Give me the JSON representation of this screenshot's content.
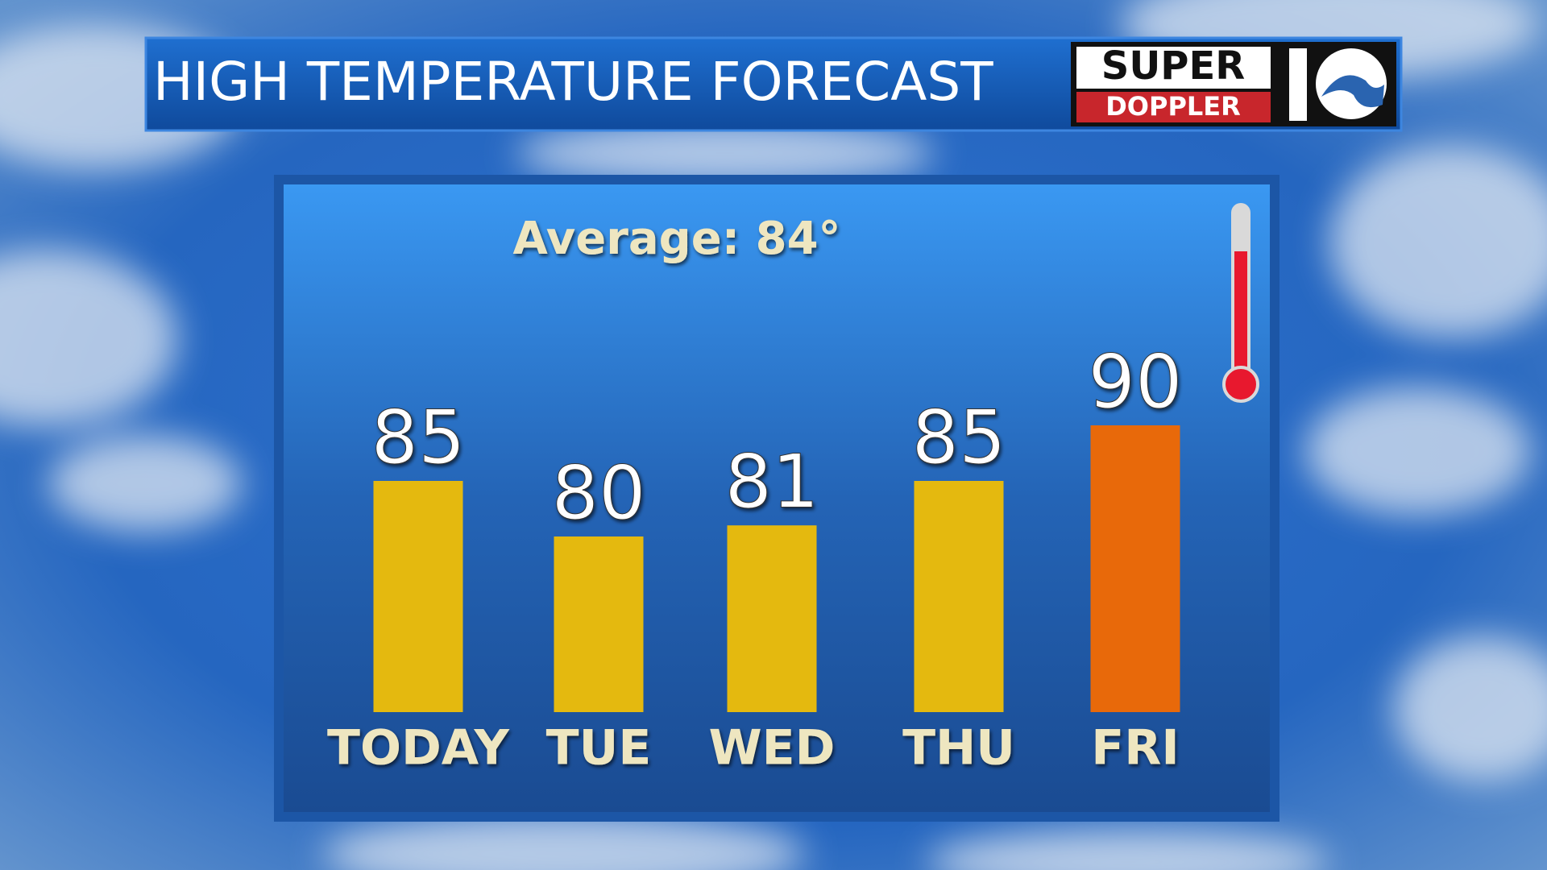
{
  "chart_data": {
    "type": "bar",
    "title": "HIGH TEMPERATURE FORECAST",
    "logo": {
      "top": "SUPER",
      "bottom": "DOPPLER"
    },
    "annotation": "Average: 84°",
    "categories": [
      "TODAY",
      "TUE",
      "WED",
      "THU",
      "FRI"
    ],
    "values": [
      85,
      80,
      81,
      85,
      90
    ],
    "colors": [
      "#e4b90f",
      "#e4b90f",
      "#e4b90f",
      "#e4b90f",
      "#e8690a"
    ]
  }
}
